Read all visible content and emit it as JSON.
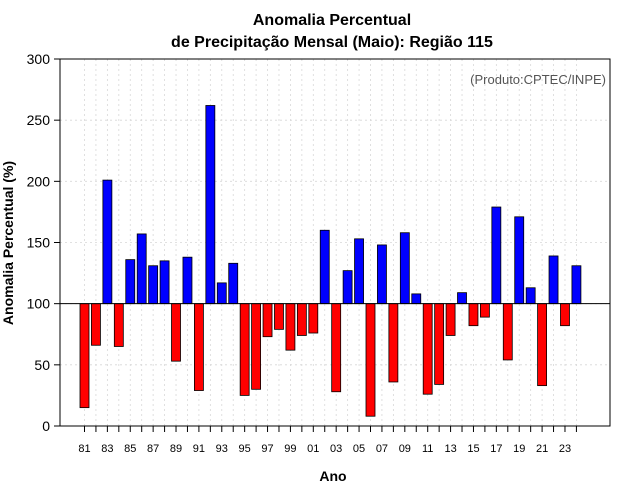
{
  "colors": {
    "positive": "#0000ff",
    "negative": "#ff0000",
    "baseline": "#000000"
  },
  "chart_data": {
    "type": "bar",
    "title_line1": "Anomalia Percentual",
    "title_line2": "de Precipitação Mensal (Maio): Região 115",
    "credit": "(Produto:CPTEC/INPE)",
    "xlabel": "Ano",
    "ylabel": "Anomalia Percentual (%)",
    "ylim": [
      0,
      300
    ],
    "yticks": [
      0,
      50,
      100,
      150,
      200,
      250,
      300
    ],
    "baseline": 100,
    "grid": true,
    "xtick_labels": [
      "81",
      "83",
      "85",
      "87",
      "89",
      "91",
      "93",
      "95",
      "97",
      "99",
      "01",
      "03",
      "05",
      "07",
      "09",
      "11",
      "13",
      "15",
      "17",
      "19",
      "21",
      "23"
    ],
    "categories": [
      "1981",
      "1982",
      "1983",
      "1984",
      "1985",
      "1986",
      "1987",
      "1988",
      "1989",
      "1990",
      "1991",
      "1992",
      "1993",
      "1994",
      "1995",
      "1996",
      "1997",
      "1998",
      "1999",
      "2000",
      "2001",
      "2002",
      "2003",
      "2004",
      "2005",
      "2006",
      "2007",
      "2008",
      "2009",
      "2010",
      "2011",
      "2012",
      "2013",
      "2014",
      "2015",
      "2016",
      "2017",
      "2018",
      "2019",
      "2020",
      "2021",
      "2022",
      "2023",
      "2024"
    ],
    "values": [
      15,
      66,
      201,
      65,
      136,
      157,
      131,
      135,
      53,
      138,
      29,
      262,
      117,
      133,
      25,
      30,
      73,
      79,
      62,
      74,
      76,
      160,
      28,
      127,
      153,
      8,
      148,
      36,
      158,
      108,
      26,
      34,
      74,
      109,
      82,
      89,
      179,
      54,
      171,
      113,
      33,
      139,
      82,
      131
    ]
  }
}
